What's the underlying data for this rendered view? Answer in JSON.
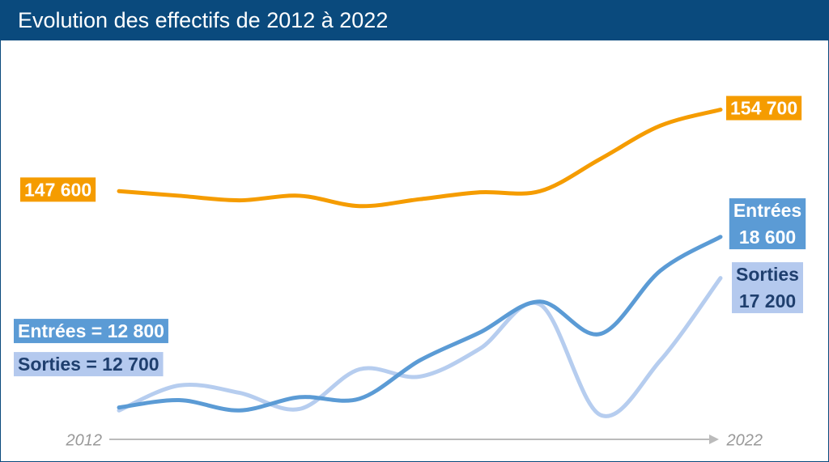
{
  "chart_data": {
    "type": "line",
    "title": "Evolution des effectifs de 2012 à 2022",
    "categories": [
      "2012",
      null,
      null,
      null,
      null,
      null,
      null,
      null,
      null,
      null,
      "2022"
    ],
    "ylim": [
      11800,
      23900
    ],
    "y2lim": [
      126200,
      157200
    ],
    "series": [
      {
        "color": "#f59c00",
        "axis": "y2",
        "values": [
          147600,
          147200,
          146800,
          147200,
          146300,
          146900,
          147500,
          147600,
          150400,
          153300,
          154700
        ],
        "value_labels": [
          "147 600",
          null,
          null,
          null,
          null,
          null,
          null,
          null,
          null,
          null,
          "154 700"
        ]
      },
      {
        "name": "Entrées",
        "color": "#5b9bd5",
        "values": [
          12800,
          13050,
          12700,
          13150,
          13100,
          14400,
          15350,
          16400,
          15300,
          17450,
          18600
        ],
        "value_labels": [
          "Entrées = 12 800",
          null,
          null,
          null,
          null,
          null,
          null,
          null,
          null,
          null,
          "18 600"
        ]
      },
      {
        "name": "Sorties",
        "color": "#b6cdef",
        "values": [
          12700,
          13550,
          13300,
          12750,
          14100,
          13850,
          14800,
          16300,
          12550,
          14400,
          17200
        ],
        "value_labels": [
          "Sorties = 12 700",
          null,
          null,
          null,
          null,
          null,
          null,
          null,
          null,
          null,
          "17 200"
        ]
      }
    ]
  }
}
